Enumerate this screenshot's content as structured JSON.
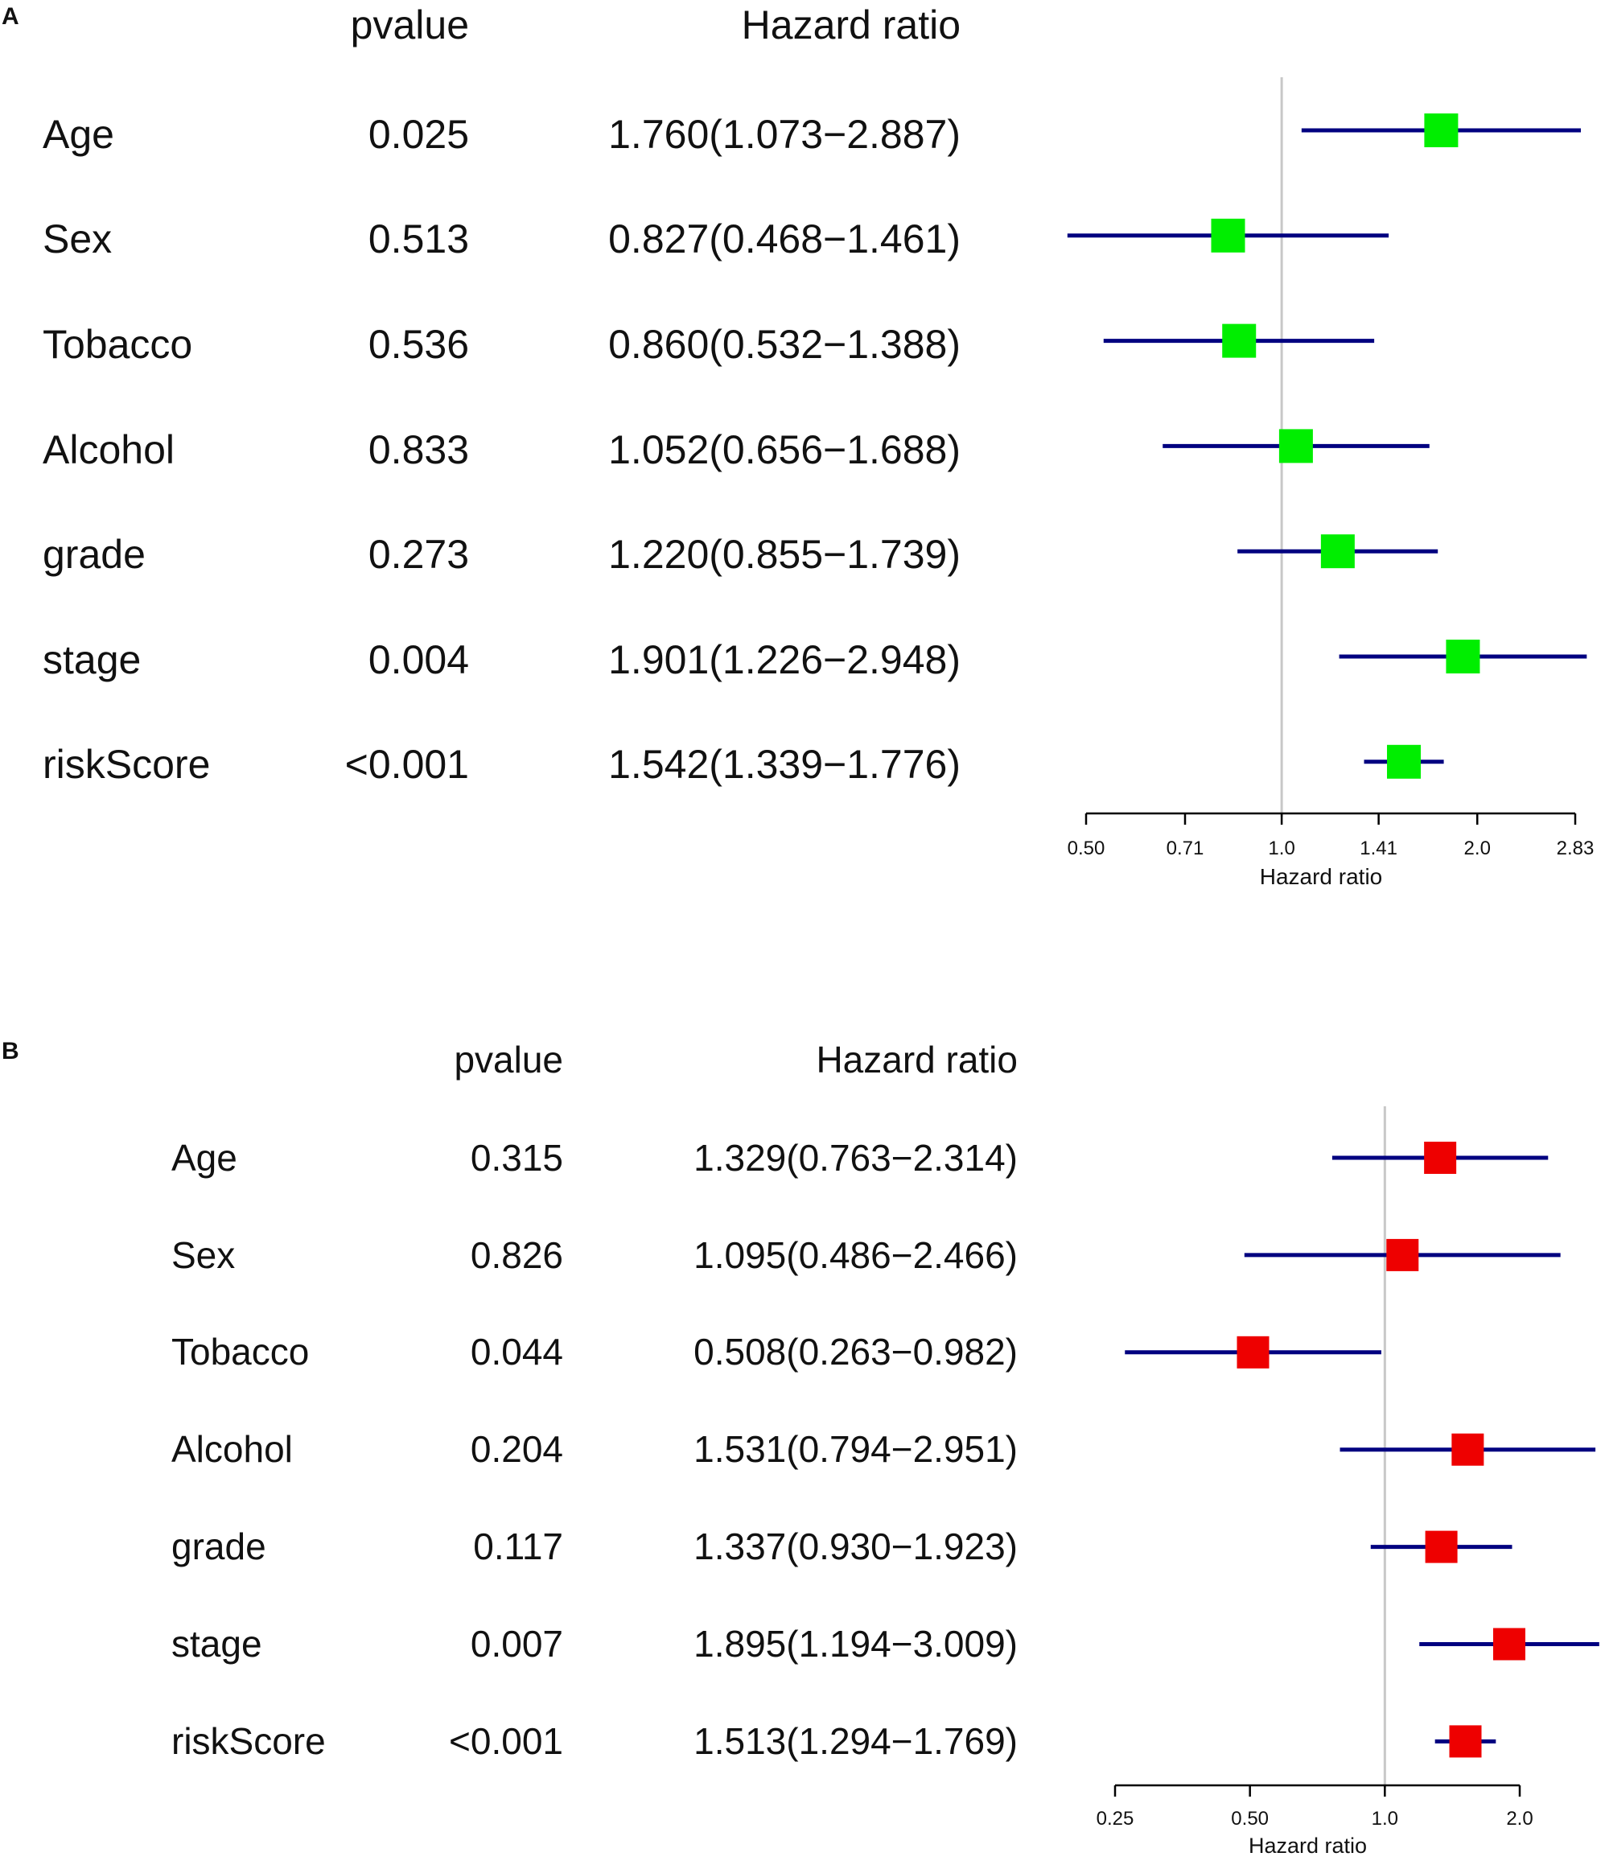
{
  "colors": {
    "ci_line": "#000080",
    "box_A": "#00ee00",
    "box_B": "#ee0000",
    "ref_line": "#c8c8c8",
    "axis": "#000000"
  },
  "chart_data": [
    {
      "panel": "A",
      "type": "forest",
      "column_headers": {
        "pvalue": "pvalue",
        "hazard_ratio": "Hazard ratio"
      },
      "xlabel": "Hazard ratio",
      "xscale": "log2",
      "xlim": [
        0.5,
        2.83
      ],
      "xticks": [
        0.5,
        0.71,
        1.0,
        1.41,
        2.0,
        2.83
      ],
      "xtick_labels": [
        "0.50",
        "0.71",
        "1.0",
        "1.41",
        "2.0",
        "2.83"
      ],
      "reference_line": 1.0,
      "rows": [
        {
          "variable": "Age",
          "pvalue": "0.025",
          "hr_text": "1.760(1.073−2.887)",
          "hr": 1.76,
          "lower": 1.073,
          "upper": 2.887
        },
        {
          "variable": "Sex",
          "pvalue": "0.513",
          "hr_text": "0.827(0.468−1.461)",
          "hr": 0.827,
          "lower": 0.468,
          "upper": 1.461
        },
        {
          "variable": "Tobacco",
          "pvalue": "0.536",
          "hr_text": "0.860(0.532−1.388)",
          "hr": 0.86,
          "lower": 0.532,
          "upper": 1.388
        },
        {
          "variable": "Alcohol",
          "pvalue": "0.833",
          "hr_text": "1.052(0.656−1.688)",
          "hr": 1.052,
          "lower": 0.656,
          "upper": 1.688
        },
        {
          "variable": "grade",
          "pvalue": "0.273",
          "hr_text": "1.220(0.855−1.739)",
          "hr": 1.22,
          "lower": 0.855,
          "upper": 1.739
        },
        {
          "variable": "stage",
          "pvalue": "0.004",
          "hr_text": "1.901(1.226−2.948)",
          "hr": 1.901,
          "lower": 1.226,
          "upper": 2.948
        },
        {
          "variable": "riskScore",
          "pvalue": "<0.001",
          "hr_text": "1.542(1.339−1.776)",
          "hr": 1.542,
          "lower": 1.339,
          "upper": 1.776
        }
      ]
    },
    {
      "panel": "B",
      "type": "forest",
      "column_headers": {
        "pvalue": "pvalue",
        "hazard_ratio": "Hazard ratio"
      },
      "xlabel": "Hazard ratio",
      "xscale": "log2",
      "xlim": [
        0.25,
        2.0
      ],
      "xticks": [
        0.25,
        0.5,
        1.0,
        2.0
      ],
      "xtick_labels": [
        "0.25",
        "0.50",
        "1.0",
        "2.0"
      ],
      "reference_line": 1.0,
      "rows": [
        {
          "variable": "Age",
          "pvalue": "0.315",
          "hr_text": "1.329(0.763−2.314)",
          "hr": 1.329,
          "lower": 0.763,
          "upper": 2.314
        },
        {
          "variable": "Sex",
          "pvalue": "0.826",
          "hr_text": "1.095(0.486−2.466)",
          "hr": 1.095,
          "lower": 0.486,
          "upper": 2.466
        },
        {
          "variable": "Tobacco",
          "pvalue": "0.044",
          "hr_text": "0.508(0.263−0.982)",
          "hr": 0.508,
          "lower": 0.263,
          "upper": 0.982
        },
        {
          "variable": "Alcohol",
          "pvalue": "0.204",
          "hr_text": "1.531(0.794−2.951)",
          "hr": 1.531,
          "lower": 0.794,
          "upper": 2.951
        },
        {
          "variable": "grade",
          "pvalue": "0.117",
          "hr_text": "1.337(0.930−1.923)",
          "hr": 1.337,
          "lower": 0.93,
          "upper": 1.923
        },
        {
          "variable": "stage",
          "pvalue": "0.007",
          "hr_text": "1.895(1.194−3.009)",
          "hr": 1.895,
          "lower": 1.194,
          "upper": 3.009
        },
        {
          "variable": "riskScore",
          "pvalue": "<0.001",
          "hr_text": "1.513(1.294−1.769)",
          "hr": 1.513,
          "lower": 1.294,
          "upper": 1.769
        }
      ]
    }
  ]
}
